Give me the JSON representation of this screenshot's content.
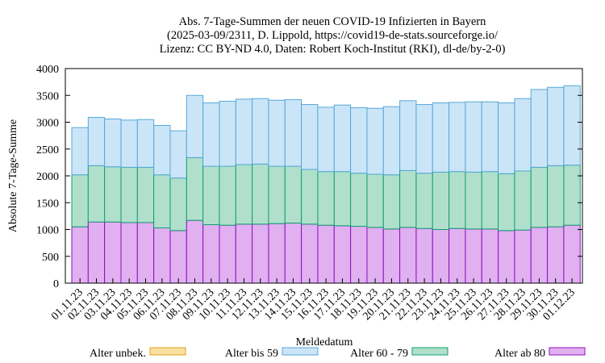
{
  "chart_data": {
    "type": "bar",
    "stacked": true,
    "title": [
      "Abs. 7-Tage-Summen der neuen COVID-19 Infizierten in Bayern",
      "(2025-03-09/2311, D. Lippold, https://covid19-de-stats.sourceforge.io/",
      "Lizenz: CC BY-ND 4.0, Daten: Robert Koch-Institut (RKI), dl-de/by-2-0)"
    ],
    "xlabel": "Meldedatum",
    "ylabel": "Absolute 7-Tage-Summe",
    "ylim": [
      0,
      4000
    ],
    "yticks": [
      "0",
      "500",
      "1000",
      "1500",
      "2000",
      "2500",
      "3000",
      "3500",
      "4000"
    ],
    "grid": false,
    "legend_position": "bottom",
    "categories": [
      "01.11.23",
      "02.11.23",
      "03.11.23",
      "04.11.23",
      "05.11.23",
      "06.11.23",
      "07.11.23",
      "08.11.23",
      "09.11.23",
      "10.11.23",
      "11.11.23",
      "12.11.23",
      "13.11.23",
      "14.11.23",
      "15.11.23",
      "16.11.23",
      "17.11.23",
      "18.11.23",
      "19.11.23",
      "20.11.23",
      "21.11.23",
      "22.11.23",
      "23.11.23",
      "24.11.23",
      "25.11.23",
      "26.11.23",
      "27.11.23",
      "28.11.23",
      "29.11.23",
      "30.11.23",
      "01.12.23"
    ],
    "series": [
      {
        "name": "Alter unbek.",
        "color": "#f8e0a0",
        "edge": "#e6a020",
        "values": [
          0,
          0,
          0,
          0,
          0,
          0,
          0,
          0,
          0,
          0,
          0,
          0,
          0,
          0,
          0,
          0,
          0,
          0,
          0,
          0,
          0,
          0,
          0,
          0,
          0,
          0,
          0,
          0,
          0,
          0,
          0
        ]
      },
      {
        "name": "Alter bis 59",
        "color": "#cbe5f8",
        "edge": "#56a8d8",
        "values": [
          880,
          900,
          890,
          880,
          890,
          920,
          880,
          1160,
          1180,
          1210,
          1220,
          1220,
          1230,
          1240,
          1210,
          1200,
          1240,
          1220,
          1230,
          1270,
          1300,
          1280,
          1290,
          1290,
          1310,
          1300,
          1320,
          1350,
          1450,
          1460,
          1480
        ]
      },
      {
        "name": "Alter 60 - 79",
        "color": "#b0e0cc",
        "edge": "#10a070",
        "values": [
          970,
          1050,
          1030,
          1030,
          1030,
          990,
          980,
          1170,
          1090,
          1100,
          1110,
          1120,
          1070,
          1060,
          1020,
          1000,
          1010,
          990,
          990,
          1010,
          1060,
          1030,
          1070,
          1060,
          1060,
          1070,
          1060,
          1100,
          1120,
          1140,
          1120
        ]
      },
      {
        "name": "Alter ab 80",
        "color": "#e0b0f0",
        "edge": "#9010c0",
        "values": [
          1050,
          1140,
          1140,
          1130,
          1130,
          1030,
          980,
          1170,
          1090,
          1080,
          1100,
          1100,
          1110,
          1120,
          1100,
          1080,
          1070,
          1060,
          1040,
          1010,
          1040,
          1020,
          1000,
          1020,
          1010,
          1010,
          980,
          990,
          1040,
          1050,
          1080
        ]
      }
    ]
  }
}
